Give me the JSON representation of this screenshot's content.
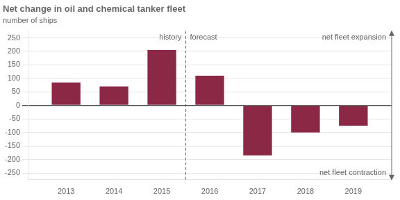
{
  "chart_data": {
    "type": "bar",
    "title": "Net change in oil and chemical tanker fleet",
    "subtitle": "number of ships",
    "x": [
      2013,
      2014,
      2015,
      2016,
      2017,
      2018,
      2019
    ],
    "values": [
      85,
      70,
      205,
      110,
      -185,
      -100,
      -75
    ],
    "color": "#8B2846",
    "xlim": [
      2012.2,
      2019.8
    ],
    "xticks": [
      2013,
      2014,
      2015,
      2016,
      2017,
      2018,
      2019
    ],
    "ylim": [
      -275,
      275
    ],
    "yticks": [
      -250,
      -200,
      -150,
      -100,
      -50,
      0,
      50,
      100,
      150,
      200,
      250
    ],
    "grid": true,
    "divider_x": 2015.5,
    "history_label": "history",
    "forecast_label": "forecast",
    "expansion_label": "net fleet expansion",
    "contraction_label": "net fleet contraction"
  }
}
